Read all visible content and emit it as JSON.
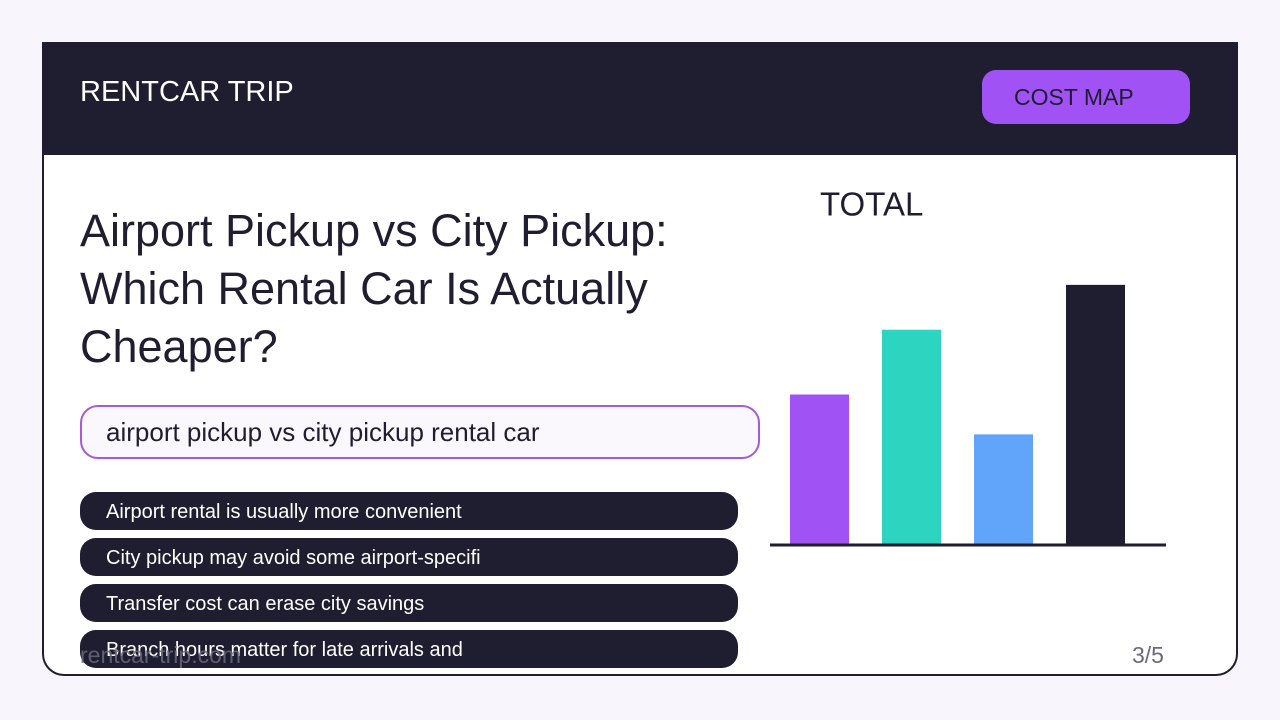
{
  "header": {
    "brand": "RENTCAR TRIP",
    "button": "COST MAP"
  },
  "slide": {
    "title": "Airport Pickup vs City Pickup: Which Rental Car Is Actually Cheaper?",
    "query": "airport pickup vs city pickup rental car",
    "bullets": [
      "Airport rental is usually more convenient",
      "City pickup may avoid some airport-specifi",
      "Transfer cost can erase city savings",
      "Branch hours matter for late arrivals and"
    ],
    "footer": "rentcar-trip.com",
    "page": "3/5"
  },
  "chart_data": {
    "type": "bar",
    "title": "TOTAL",
    "categories": [
      null,
      null,
      null,
      null
    ],
    "values": [
      150,
      215,
      110,
      260
    ],
    "colors": [
      "#a052f5",
      "#2dd4bf",
      "#60a5fa",
      "#1f1d30"
    ],
    "ylim": [
      0,
      300
    ]
  }
}
